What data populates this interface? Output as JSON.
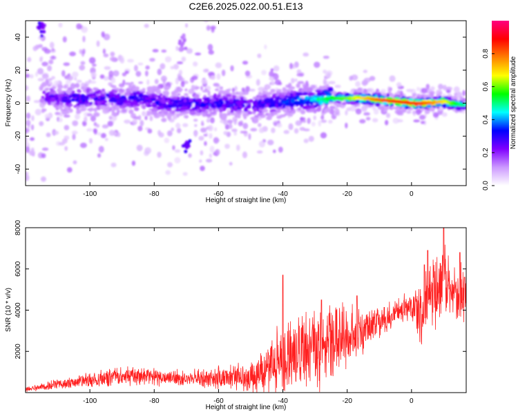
{
  "figure": {
    "title": "C2E6.2025.022.00.51.E13"
  },
  "chart_data": [
    {
      "type": "heatmap",
      "title": "C2E6.2025.022.00.51.E13",
      "xlabel": "Height of straight line (km)",
      "ylabel": "Frequency (Hz)",
      "xlim": [
        -120,
        17
      ],
      "ylim": [
        -50,
        50
      ],
      "xticks": [
        -100,
        -80,
        -60,
        -40,
        -20,
        0
      ],
      "yticks": [
        -40,
        -20,
        0,
        20,
        40
      ],
      "grid": false,
      "colorbar": {
        "label": "Normalized spectral amplitude",
        "range": [
          0,
          1
        ],
        "ticks": [
          0.0,
          0.2,
          0.4,
          0.6,
          0.8
        ],
        "colormap": [
          "#ffffff",
          "#cc99ff",
          "#8000ff",
          "#0000ff",
          "#00ffff",
          "#00ff00",
          "#ffff00",
          "#ff8000",
          "#ff0000",
          "#ff0080"
        ]
      },
      "ridge": [
        {
          "x": -115,
          "f": 4,
          "amp": 0.25
        },
        {
          "x": -110,
          "f": 3,
          "amp": 0.25
        },
        {
          "x": -105,
          "f": 3,
          "amp": 0.3
        },
        {
          "x": -100,
          "f": 2,
          "amp": 0.3
        },
        {
          "x": -95,
          "f": 3,
          "amp": 0.3
        },
        {
          "x": -90,
          "f": 2,
          "amp": 0.3
        },
        {
          "x": -85,
          "f": 3,
          "amp": 0.3
        },
        {
          "x": -80,
          "f": 1,
          "amp": 0.3
        },
        {
          "x": -75,
          "f": -1,
          "amp": 0.3
        },
        {
          "x": -70,
          "f": 0,
          "amp": 0.3
        },
        {
          "x": -65,
          "f": -1,
          "amp": 0.3
        },
        {
          "x": -60,
          "f": 0,
          "amp": 0.3
        },
        {
          "x": -55,
          "f": -1,
          "amp": 0.3
        },
        {
          "x": -50,
          "f": -2,
          "amp": 0.3
        },
        {
          "x": -45,
          "f": 0,
          "amp": 0.3
        },
        {
          "x": -40,
          "f": 1,
          "amp": 0.35
        },
        {
          "x": -35,
          "f": 2,
          "amp": 0.4
        },
        {
          "x": -30,
          "f": 2,
          "amp": 0.45
        },
        {
          "x": -25,
          "f": 3,
          "amp": 0.55
        },
        {
          "x": -20,
          "f": 3,
          "amp": 0.6
        },
        {
          "x": -15,
          "f": 3,
          "amp": 0.7
        },
        {
          "x": -10,
          "f": 2,
          "amp": 0.8
        },
        {
          "x": -5,
          "f": 1,
          "amp": 0.85
        },
        {
          "x": 0,
          "f": 0,
          "amp": 0.85
        },
        {
          "x": 5,
          "f": 0,
          "amp": 0.8
        },
        {
          "x": 10,
          "f": 1,
          "amp": 0.7
        },
        {
          "x": 15,
          "f": -1,
          "amp": 0.5
        }
      ],
      "features": [
        {
          "x": -70,
          "f": -25,
          "amp": 0.3
        },
        {
          "x": -71,
          "f": 37,
          "amp": 0.15
        },
        {
          "x": -115,
          "f": 45,
          "amp": 0.3
        }
      ]
    },
    {
      "type": "line",
      "xlabel": "Height of straight line (km)",
      "ylabel": "SNR (10 * v/v)",
      "xlim": [
        -120,
        17
      ],
      "ylim": [
        0,
        8000
      ],
      "xticks": [
        -100,
        -80,
        -60,
        -40,
        -20,
        0
      ],
      "yticks": [
        2000,
        4000,
        6000,
        8000
      ],
      "grid": false,
      "color": "#ff2020",
      "envelope": {
        "x": [
          -120,
          -110,
          -100,
          -90,
          -80,
          -70,
          -60,
          -50,
          -45,
          -40,
          -35,
          -30,
          -25,
          -20,
          -15,
          -10,
          -5,
          0,
          3,
          5,
          8,
          10,
          12,
          15,
          17
        ],
        "mean": [
          150,
          400,
          600,
          800,
          750,
          700,
          700,
          800,
          1000,
          1700,
          2000,
          2000,
          2500,
          2800,
          3000,
          3400,
          3900,
          4300,
          3800,
          4700,
          5000,
          5500,
          4800,
          4700,
          4800
        ],
        "spread": [
          150,
          300,
          450,
          550,
          500,
          450,
          650,
          900,
          1400,
          2200,
          2300,
          2300,
          2200,
          1700,
          1200,
          900,
          800,
          1000,
          2000,
          2000,
          2300,
          2600,
          1500,
          1800,
          1200
        ]
      },
      "peaks": [
        {
          "x": -40,
          "y": 5700
        },
        {
          "x": -28,
          "y": 4500
        },
        {
          "x": -17,
          "y": 4700
        },
        {
          "x": 4,
          "y": 6200
        },
        {
          "x": 5,
          "y": 6900
        },
        {
          "x": 10,
          "y": 8000
        },
        {
          "x": 15,
          "y": 6800
        },
        {
          "x": 16.5,
          "y": 5600
        }
      ]
    }
  ]
}
